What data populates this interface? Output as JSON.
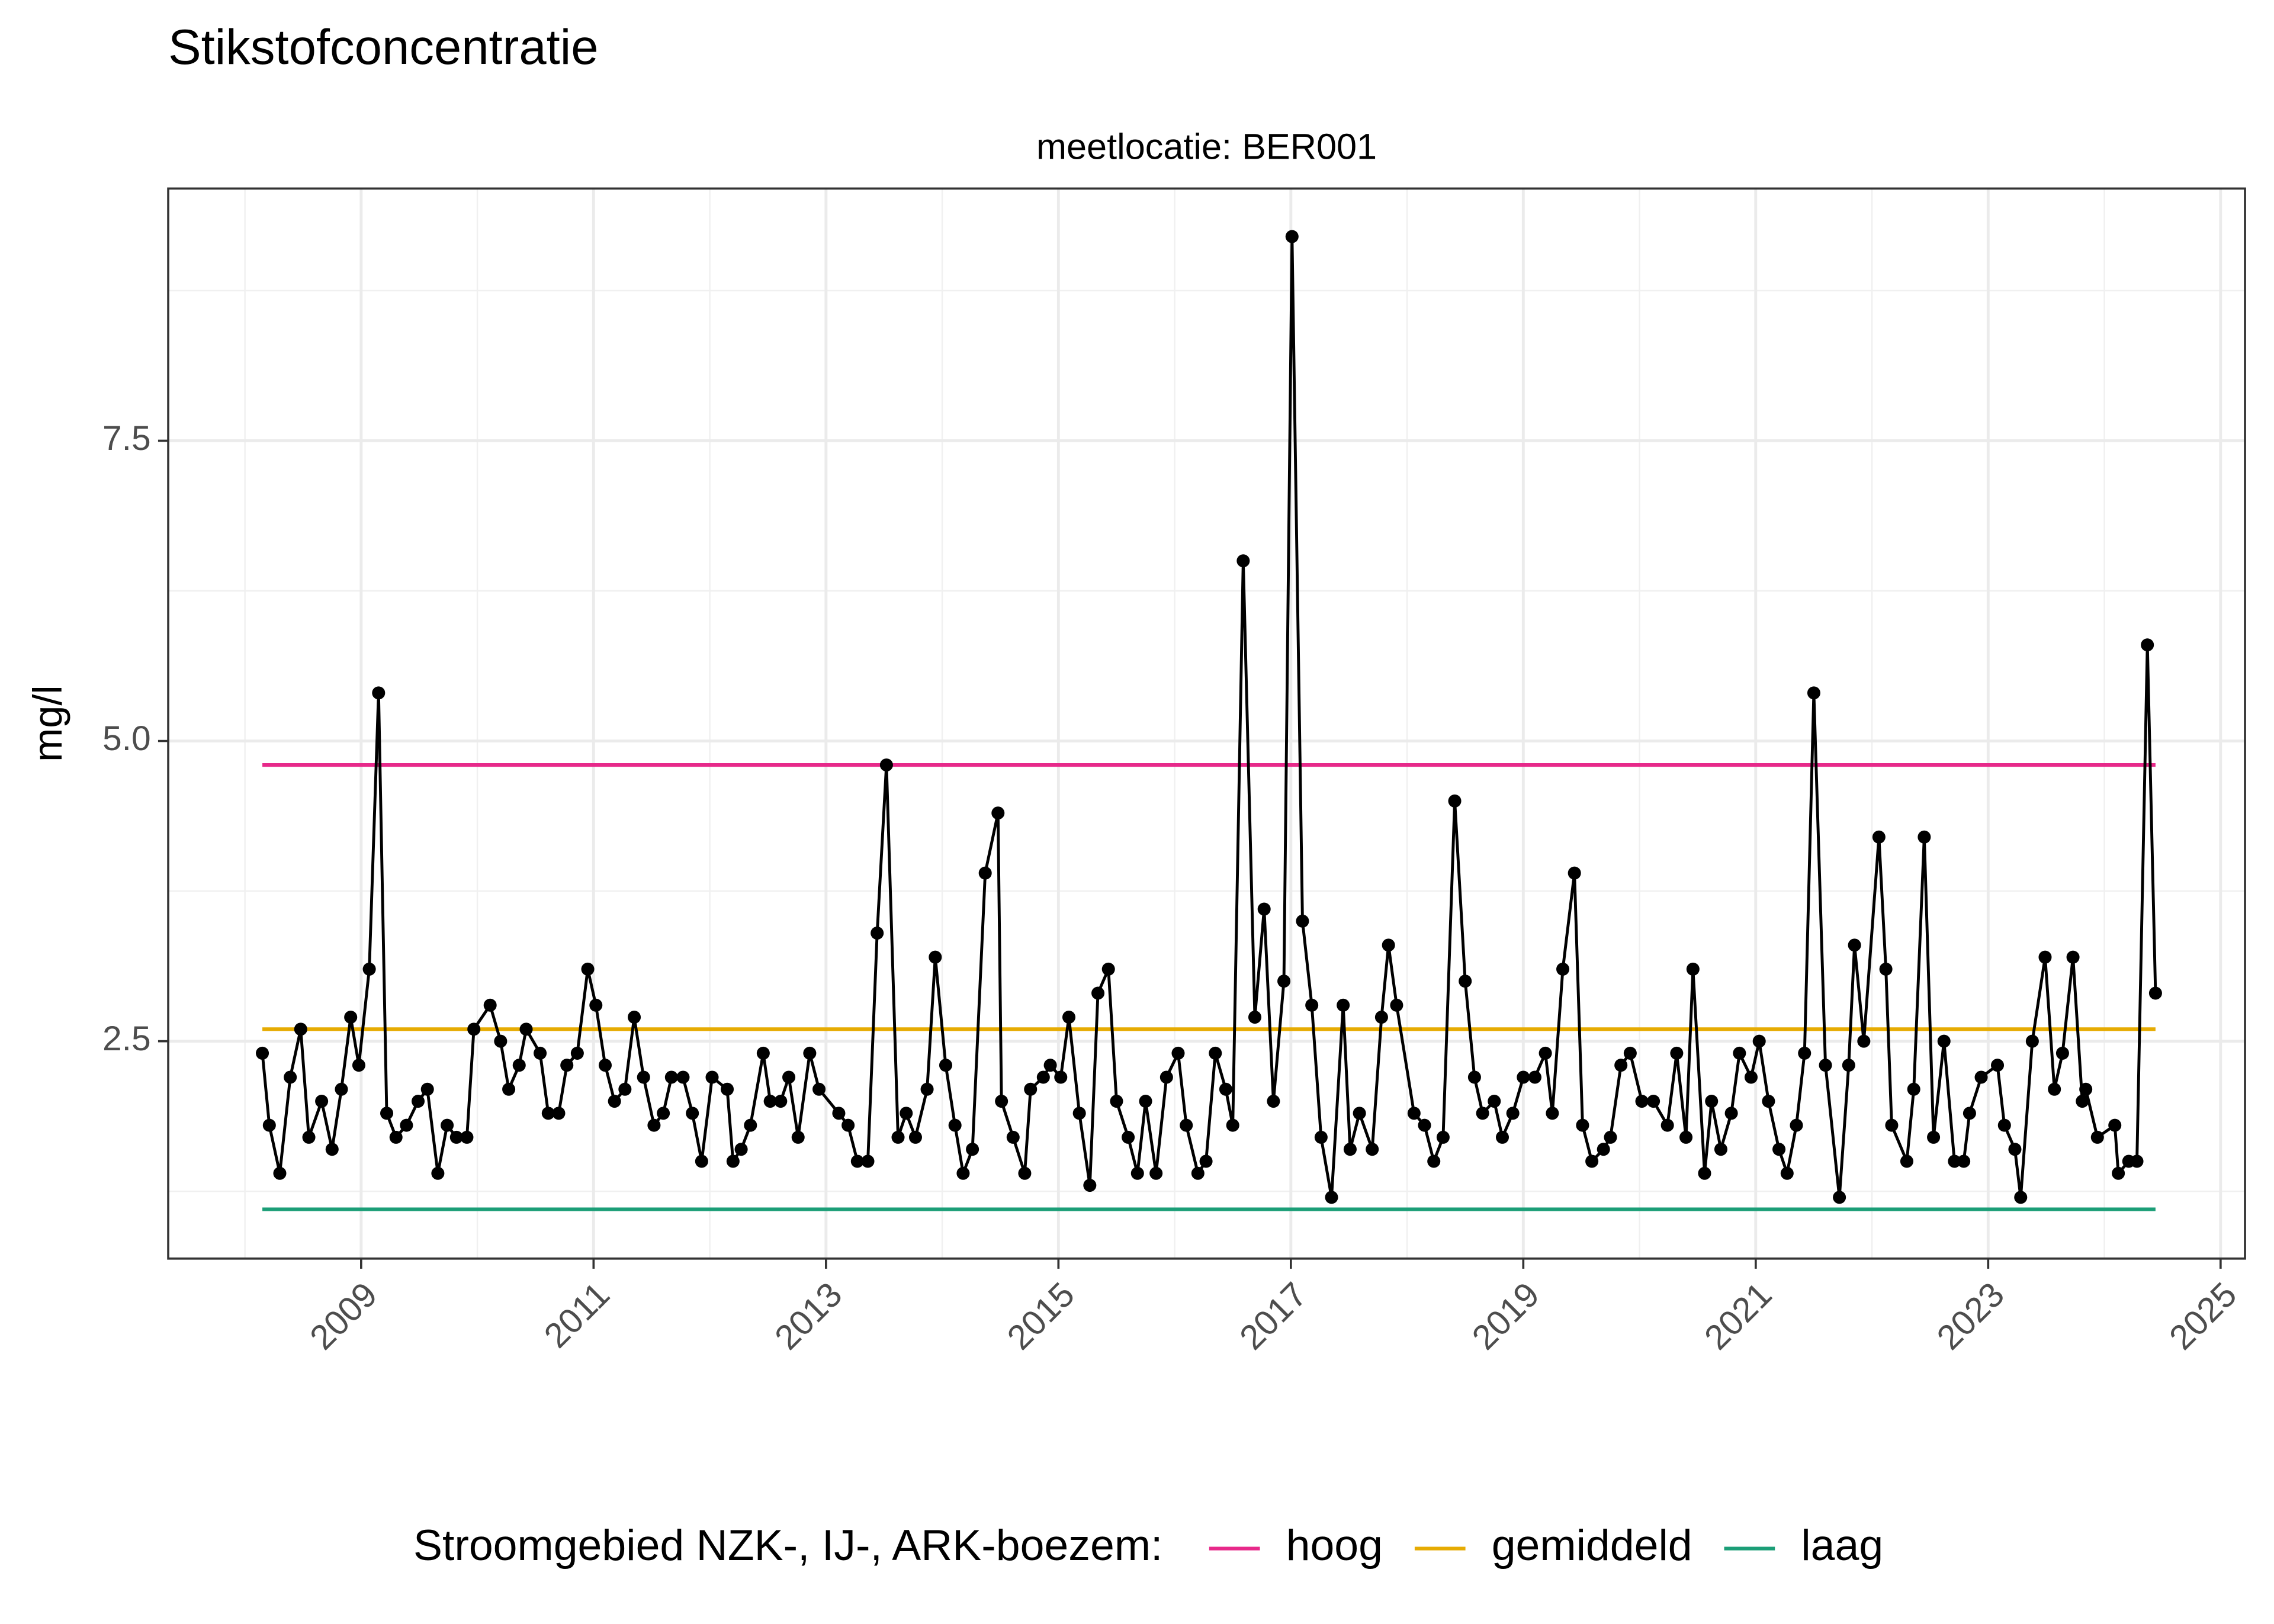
{
  "chart_data": {
    "type": "line",
    "title": "Stikstofconcentratie",
    "subtitle": "meetlocatie: BER001",
    "y_label": "mg/l",
    "legend_title": "Stroomgebied NZK-, IJ-, ARK-boezem:",
    "legend_position": "bottom",
    "grid": true,
    "color": "#000000",
    "xlim": [
      2007.34,
      2025.21
    ],
    "ylim": [
      0.69,
      9.6
    ],
    "xticks": [
      2009,
      2011,
      2013,
      2015,
      2017,
      2019,
      2021,
      2023,
      2025
    ],
    "minor_xticks": [
      2008,
      2010,
      2012,
      2014,
      2016,
      2018,
      2020,
      2022,
      2024
    ],
    "yticks": [
      2.5,
      {
        "value": 5,
        "label": "5.0"
      },
      {
        "value": 7.5,
        "label": "7.5"
      }
    ],
    "minor_yticks": [
      1.25,
      3.75,
      6.25,
      8.75
    ],
    "reference_lines": [
      {
        "name": "hoog",
        "color": "#e7298a",
        "value": 4.8
      },
      {
        "name": "gemiddeld",
        "color": "#e6ab02",
        "value": 2.6
      },
      {
        "name": "laag",
        "color": "#1b9e77",
        "value": 1.1
      }
    ],
    "x": [
      2008.15,
      2008.21,
      2008.3,
      2008.39,
      2008.48,
      2008.55,
      2008.66,
      2008.75,
      2008.83,
      2008.91,
      2008.98,
      2009.07,
      2009.15,
      2009.22,
      2009.3,
      2009.39,
      2009.49,
      2009.57,
      2009.66,
      2009.74,
      2009.82,
      2009.91,
      2009.97,
      2010.11,
      2010.2,
      2010.27,
      2010.36,
      2010.42,
      2010.54,
      2010.61,
      2010.7,
      2010.77,
      2010.86,
      2010.95,
      2011.02,
      2011.1,
      2011.18,
      2011.27,
      2011.35,
      2011.43,
      2011.52,
      2011.6,
      2011.67,
      2011.77,
      2011.85,
      2011.93,
      2012.02,
      2012.15,
      2012.2,
      2012.27,
      2012.35,
      2012.46,
      2012.52,
      2012.61,
      2012.68,
      2012.76,
      2012.86,
      2012.94,
      2013.11,
      2013.19,
      2013.27,
      2013.36,
      2013.44,
      2013.52,
      2013.62,
      2013.69,
      2013.77,
      2013.87,
      2013.94,
      2014.03,
      2014.11,
      2014.18,
      2014.26,
      2014.37,
      2014.48,
      2014.51,
      2014.61,
      2014.71,
      2014.76,
      2014.87,
      2014.93,
      2015.02,
      2015.09,
      2015.18,
      2015.27,
      2015.34,
      2015.43,
      2015.5,
      2015.6,
      2015.68,
      2015.75,
      2015.84,
      2015.93,
      2016.03,
      2016.1,
      2016.2,
      2016.27,
      2016.35,
      2016.44,
      2016.5,
      2016.59,
      2016.69,
      2016.77,
      2016.85,
      2016.94,
      2017.01,
      2017.1,
      2017.18,
      2017.26,
      2017.35,
      2017.45,
      2017.51,
      2017.59,
      2017.7,
      2017.78,
      2017.84,
      2017.91,
      2018.06,
      2018.15,
      2018.23,
      2018.31,
      2018.41,
      2018.5,
      2018.58,
      2018.65,
      2018.75,
      2018.82,
      2018.91,
      2019.0,
      2019.1,
      2019.19,
      2019.25,
      2019.34,
      2019.44,
      2019.51,
      2019.59,
      2019.69,
      2019.75,
      2019.84,
      2019.92,
      2020.02,
      2020.12,
      2020.24,
      2020.32,
      2020.4,
      2020.46,
      2020.56,
      2020.62,
      2020.7,
      2020.79,
      2020.86,
      2020.96,
      2021.03,
      2021.11,
      2021.2,
      2021.27,
      2021.35,
      2021.42,
      2021.5,
      2021.6,
      2021.72,
      2021.8,
      2021.85,
      2021.93,
      2022.06,
      2022.12,
      2022.17,
      2022.3,
      2022.36,
      2022.45,
      2022.53,
      2022.62,
      2022.71,
      2022.79,
      2022.84,
      2022.94,
      2023.08,
      2023.14,
      2023.23,
      2023.28,
      2023.38,
      2023.49,
      2023.57,
      2023.64,
      2023.73,
      2023.81,
      2023.84,
      2023.94,
      2024.09,
      2024.12,
      2024.21,
      2024.28,
      2024.37,
      2024.44
    ],
    "values": [
      2.4,
      1.8,
      1.4,
      2.2,
      2.6,
      1.7,
      2.0,
      1.6,
      2.1,
      2.7,
      2.3,
      3.1,
      5.4,
      1.9,
      1.7,
      1.8,
      2.0,
      2.1,
      1.4,
      1.8,
      1.7,
      1.7,
      2.6,
      2.8,
      2.5,
      2.1,
      2.3,
      2.6,
      2.4,
      1.9,
      1.9,
      2.3,
      2.4,
      3.1,
      2.8,
      2.3,
      2.0,
      2.1,
      2.7,
      2.2,
      1.8,
      1.9,
      2.2,
      2.2,
      1.9,
      1.5,
      2.2,
      2.1,
      1.5,
      1.6,
      1.8,
      2.4,
      2.0,
      2.0,
      2.2,
      1.7,
      2.4,
      2.1,
      1.9,
      1.8,
      1.5,
      1.5,
      3.4,
      4.8,
      1.7,
      1.9,
      1.7,
      2.1,
      3.2,
      2.3,
      1.8,
      1.4,
      1.6,
      3.9,
      4.4,
      2.0,
      1.7,
      1.4,
      2.1,
      2.2,
      2.3,
      2.2,
      2.7,
      1.9,
      1.3,
      2.9,
      3.1,
      2.0,
      1.7,
      1.4,
      2.0,
      1.4,
      2.2,
      2.4,
      1.8,
      1.4,
      1.5,
      2.4,
      2.1,
      1.8,
      6.5,
      2.7,
      3.6,
      2.0,
      3.0,
      9.2,
      3.5,
      2.8,
      1.7,
      1.2,
      2.8,
      1.6,
      1.9,
      1.6,
      2.7,
      3.3,
      2.8,
      1.9,
      1.8,
      1.5,
      1.7,
      4.5,
      3.0,
      2.2,
      1.9,
      2.0,
      1.7,
      1.9,
      2.2,
      2.2,
      2.4,
      1.9,
      3.1,
      3.9,
      1.8,
      1.5,
      1.6,
      1.7,
      2.3,
      2.4,
      2.0,
      2.0,
      1.8,
      2.4,
      1.7,
      3.1,
      1.4,
      2.0,
      1.6,
      1.9,
      2.4,
      2.2,
      2.5,
      2.0,
      1.6,
      1.4,
      1.8,
      2.4,
      5.4,
      2.3,
      1.2,
      2.3,
      3.3,
      2.5,
      4.2,
      3.1,
      1.8,
      1.5,
      2.1,
      4.2,
      1.7,
      2.5,
      1.5,
      1.5,
      1.9,
      2.2,
      2.3,
      1.8,
      1.6,
      1.2,
      2.5,
      3.2,
      2.1,
      2.4,
      3.2,
      2.0,
      2.1,
      1.7,
      1.8,
      1.4,
      1.5,
      1.5,
      5.8,
      2.9
    ]
  }
}
